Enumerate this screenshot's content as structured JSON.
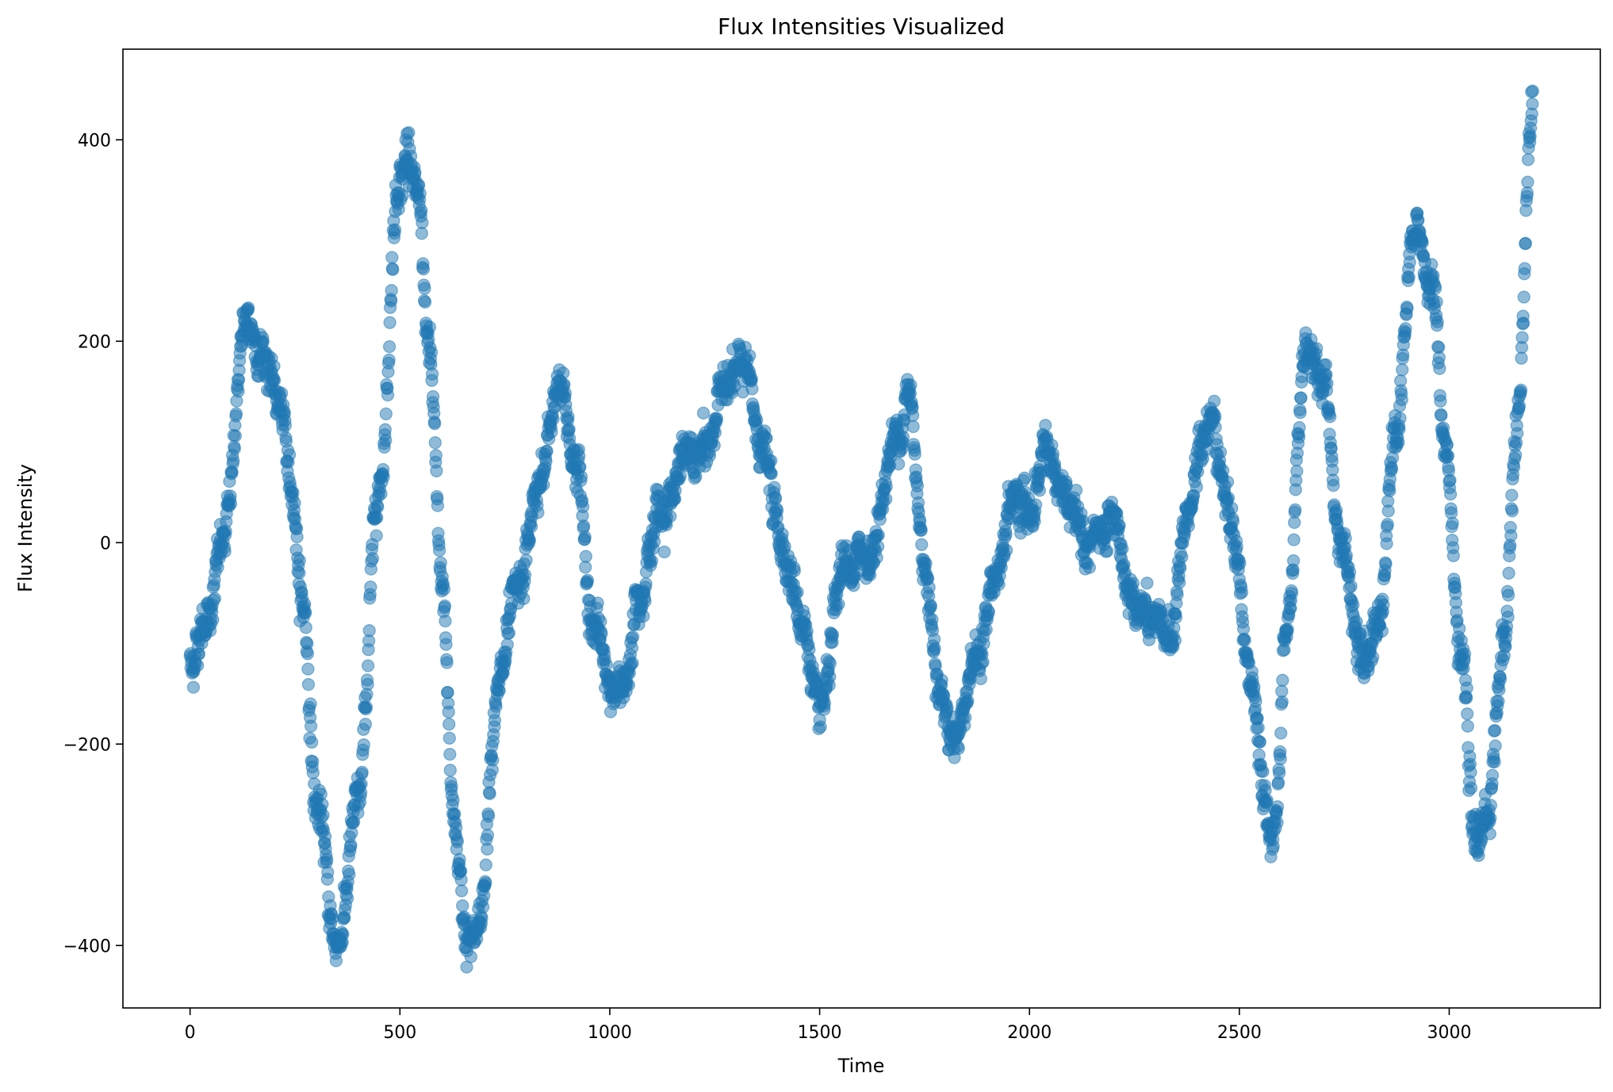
{
  "chart_data": {
    "type": "scatter",
    "title": "Flux Intensities Visualized",
    "xlabel": "Time",
    "ylabel": "Flux Intensity",
    "xlim": [
      -160,
      3360
    ],
    "ylim": [
      -462,
      490
    ],
    "xticks": [
      0,
      500,
      1000,
      1500,
      2000,
      2500,
      3000
    ],
    "yticks": [
      -400,
      -200,
      0,
      200,
      400
    ],
    "ytick_labels": [
      "−400",
      "−200",
      "0",
      "200",
      "400"
    ],
    "grid": false,
    "legend": "none",
    "marker": "circle",
    "color": "#1f77b4",
    "alpha": 0.5,
    "series": [
      {
        "n_points": 3200,
        "x_start": 0,
        "x_step": 1,
        "keypoints": [
          [
            0,
            -120
          ],
          [
            40,
            -70
          ],
          [
            80,
            0
          ],
          [
            130,
            210
          ],
          [
            170,
            195
          ],
          [
            210,
            140
          ],
          [
            240,
            60
          ],
          [
            270,
            -60
          ],
          [
            300,
            -260
          ],
          [
            350,
            -400
          ],
          [
            400,
            -260
          ],
          [
            450,
            60
          ],
          [
            500,
            370
          ],
          [
            520,
            390
          ],
          [
            545,
            330
          ],
          [
            570,
            180
          ],
          [
            600,
            -40
          ],
          [
            630,
            -280
          ],
          [
            660,
            -390
          ],
          [
            690,
            -380
          ],
          [
            730,
            -150
          ],
          [
            780,
            -60
          ],
          [
            830,
            50
          ],
          [
            880,
            160
          ],
          [
            920,
            80
          ],
          [
            960,
            -80
          ],
          [
            1000,
            -140
          ],
          [
            1030,
            -150
          ],
          [
            1070,
            -40
          ],
          [
            1120,
            30
          ],
          [
            1180,
            80
          ],
          [
            1230,
            90
          ],
          [
            1280,
            170
          ],
          [
            1320,
            170
          ],
          [
            1360,
            100
          ],
          [
            1410,
            0
          ],
          [
            1460,
            -80
          ],
          [
            1500,
            -180
          ],
          [
            1560,
            -30
          ],
          [
            1620,
            -10
          ],
          [
            1680,
            100
          ],
          [
            1710,
            150
          ],
          [
            1750,
            -20
          ],
          [
            1790,
            -150
          ],
          [
            1820,
            -190
          ],
          [
            1870,
            -120
          ],
          [
            1920,
            -40
          ],
          [
            1960,
            40
          ],
          [
            2000,
            30
          ],
          [
            2040,
            100
          ],
          [
            2080,
            40
          ],
          [
            2130,
            0
          ],
          [
            2190,
            10
          ],
          [
            2250,
            -60
          ],
          [
            2300,
            -90
          ],
          [
            2340,
            -90
          ],
          [
            2375,
            30
          ],
          [
            2430,
            130
          ],
          [
            2480,
            30
          ],
          [
            2530,
            -140
          ],
          [
            2560,
            -270
          ],
          [
            2585,
            -300
          ],
          [
            2610,
            -100
          ],
          [
            2660,
            200
          ],
          [
            2700,
            160
          ],
          [
            2740,
            0
          ],
          [
            2790,
            -100
          ],
          [
            2830,
            -80
          ],
          [
            2870,
            100
          ],
          [
            2920,
            310
          ],
          [
            2960,
            250
          ],
          [
            2990,
            100
          ],
          [
            3030,
            -120
          ],
          [
            3060,
            -300
          ],
          [
            3090,
            -270
          ],
          [
            3130,
            -100
          ],
          [
            3160,
            100
          ],
          [
            3200,
            440
          ]
        ],
        "noise_amplitude": 15
      }
    ]
  }
}
